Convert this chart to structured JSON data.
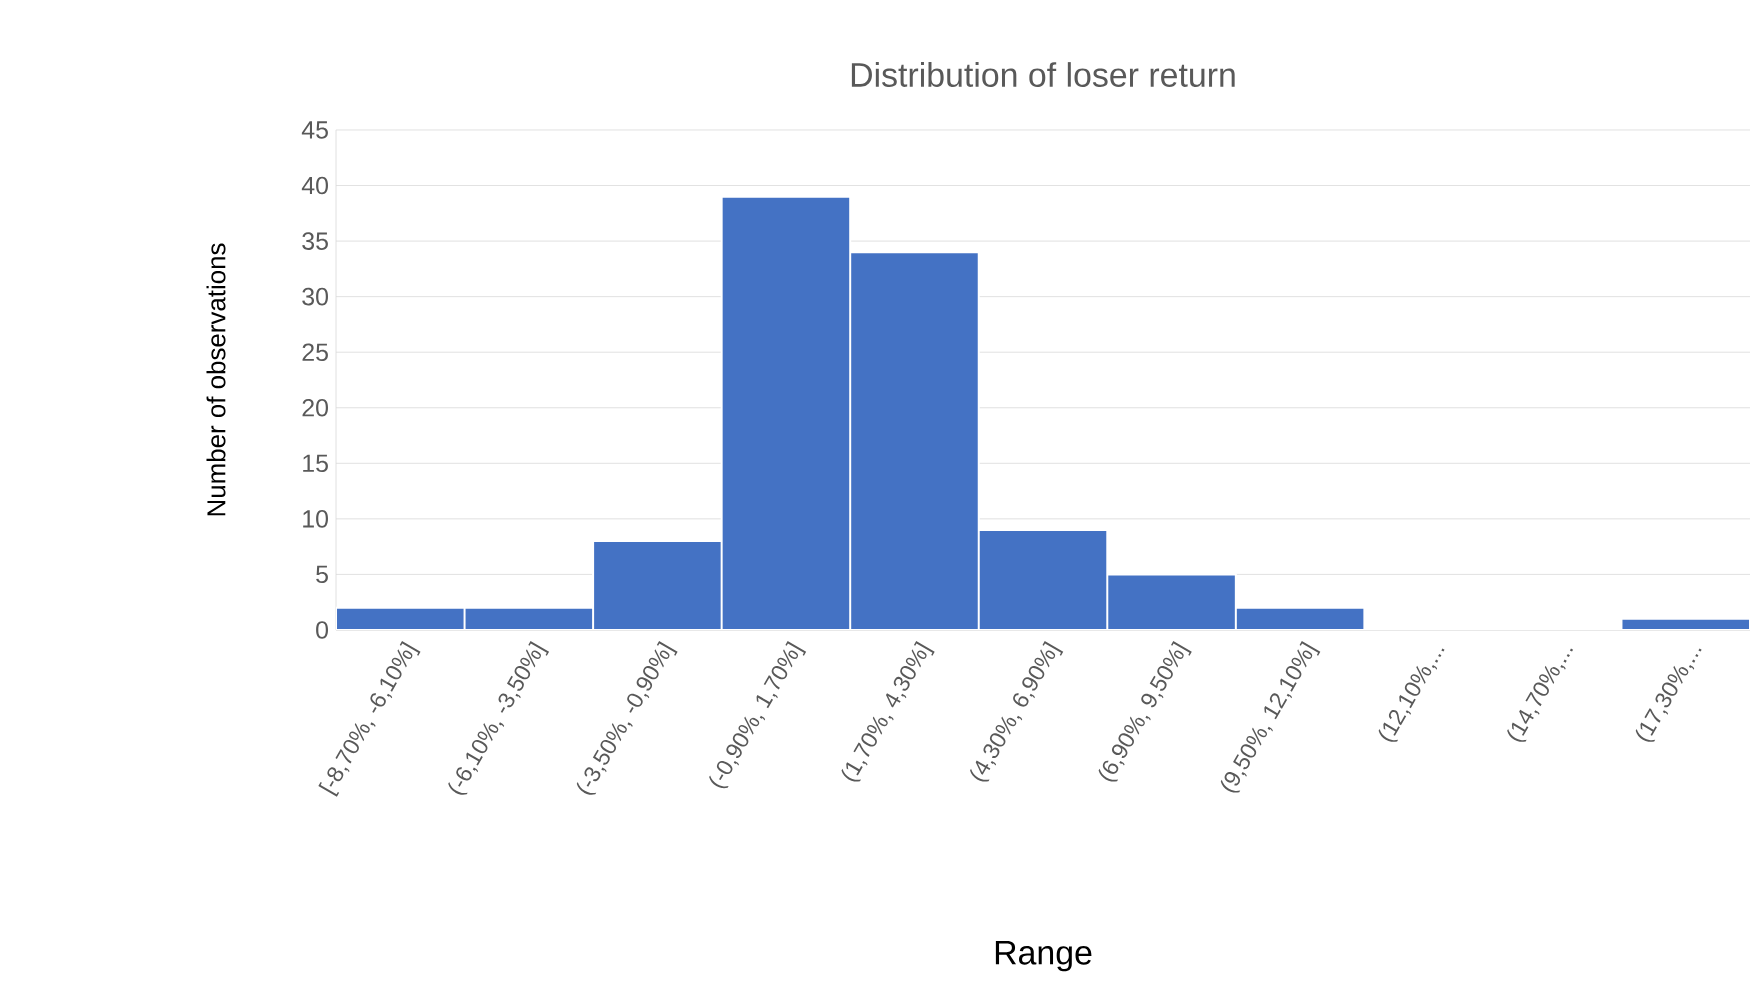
{
  "chart_data": {
    "type": "bar",
    "title": "Distribution of loser return",
    "xlabel": "Range",
    "ylabel": "Number of observations",
    "categories": [
      "[-8,70%, -6,10%]",
      "(-6,10%, -3,50%]",
      "(-3,50%, -0,90%]",
      "(-0,90%, 1,70%]",
      "(1,70%, 4,30%]",
      "(4,30%, 6,90%]",
      "(6,90%, 9,50%]",
      "(9,50%, 12,10%]",
      "(12,10%,...",
      "(14,70%,...",
      "(17,30%,..."
    ],
    "values": [
      2,
      2,
      8,
      39,
      34,
      9,
      5,
      2,
      0,
      0,
      1
    ],
    "color": "#4472c4",
    "ylim": [
      0,
      45
    ],
    "yticks": [
      0,
      5,
      10,
      15,
      20,
      25,
      30,
      35,
      40,
      45
    ],
    "grid": "y"
  }
}
